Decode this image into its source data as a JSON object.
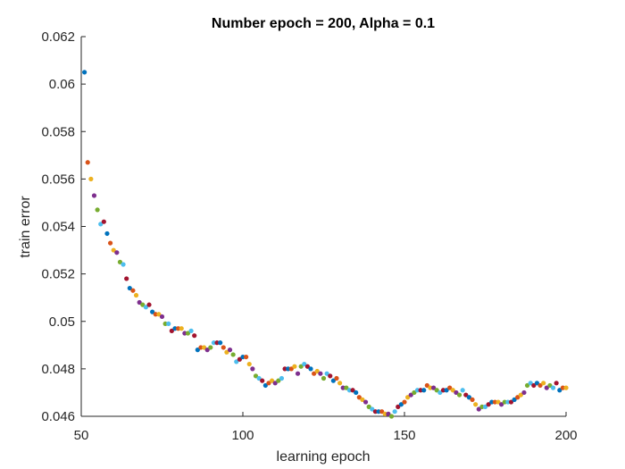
{
  "chart_data": {
    "type": "scatter",
    "title": "Number epoch = 200, Alpha = 0.1",
    "xlabel": "learning epoch",
    "ylabel": "train error",
    "xlim": [
      50,
      200
    ],
    "ylim": [
      0.046,
      0.062
    ],
    "grid": false,
    "x_ticks": [
      50,
      100,
      150,
      200
    ],
    "x_tick_labels": [
      "50",
      "100",
      "150",
      "200"
    ],
    "y_ticks": [
      0.046,
      0.048,
      0.05,
      0.052,
      0.054,
      0.056,
      0.058,
      0.06,
      0.062
    ],
    "y_tick_labels": [
      "0.046",
      "0.048",
      "0.05",
      "0.052",
      "0.054",
      "0.056",
      "0.058",
      "0.06",
      "0.062"
    ],
    "colors": [
      "#0072BD",
      "#D95319",
      "#EDB120",
      "#7E2F8E",
      "#77AC30",
      "#4DBEEE",
      "#A2142F"
    ],
    "x": [
      51,
      52,
      53,
      54,
      55,
      56,
      57,
      58,
      59,
      60,
      61,
      62,
      63,
      64,
      65,
      66,
      67,
      68,
      69,
      70,
      71,
      72,
      73,
      74,
      75,
      76,
      77,
      78,
      79,
      80,
      81,
      82,
      83,
      84,
      85,
      86,
      87,
      88,
      89,
      90,
      91,
      92,
      93,
      94,
      95,
      96,
      97,
      98,
      99,
      100,
      101,
      102,
      103,
      104,
      105,
      106,
      107,
      108,
      109,
      110,
      111,
      112,
      113,
      114,
      115,
      116,
      117,
      118,
      119,
      120,
      121,
      122,
      123,
      124,
      125,
      126,
      127,
      128,
      129,
      130,
      131,
      132,
      133,
      134,
      135,
      136,
      137,
      138,
      139,
      140,
      141,
      142,
      143,
      144,
      145,
      146,
      147,
      148,
      149,
      150,
      151,
      152,
      153,
      154,
      155,
      156,
      157,
      158,
      159,
      160,
      161,
      162,
      163,
      164,
      165,
      166,
      167,
      168,
      169,
      170,
      171,
      172,
      173,
      174,
      175,
      176,
      177,
      178,
      179,
      180,
      181,
      182,
      183,
      184,
      185,
      186,
      187,
      188,
      189,
      190,
      191,
      192,
      193,
      194,
      195,
      196,
      197,
      198,
      199,
      200
    ],
    "y": [
      0.0605,
      0.0567,
      0.056,
      0.0553,
      0.0547,
      0.0541,
      0.0542,
      0.0537,
      0.0533,
      0.053,
      0.0529,
      0.0525,
      0.0524,
      0.0518,
      0.0514,
      0.0513,
      0.0511,
      0.0508,
      0.0507,
      0.0506,
      0.0507,
      0.0504,
      0.0503,
      0.0503,
      0.0502,
      0.0499,
      0.0499,
      0.0496,
      0.0497,
      0.0497,
      0.0497,
      0.0495,
      0.0495,
      0.0496,
      0.0494,
      0.0488,
      0.0489,
      0.0489,
      0.0488,
      0.0489,
      0.0491,
      0.0491,
      0.0491,
      0.0489,
      0.0487,
      0.0488,
      0.0486,
      0.0483,
      0.0484,
      0.0485,
      0.0485,
      0.0482,
      0.048,
      0.0477,
      0.0476,
      0.0475,
      0.0473,
      0.0474,
      0.0475,
      0.0474,
      0.0475,
      0.0476,
      0.048,
      0.048,
      0.048,
      0.0481,
      0.0478,
      0.0481,
      0.0482,
      0.0481,
      0.048,
      0.0478,
      0.0479,
      0.0478,
      0.0476,
      0.0478,
      0.0477,
      0.0475,
      0.0476,
      0.0474,
      0.0472,
      0.0472,
      0.0471,
      0.0471,
      0.047,
      0.0468,
      0.0467,
      0.0466,
      0.0464,
      0.0463,
      0.0462,
      0.0462,
      0.0462,
      0.0461,
      0.0461,
      0.046,
      0.0462,
      0.0464,
      0.0465,
      0.0466,
      0.0468,
      0.0469,
      0.047,
      0.0471,
      0.0471,
      0.0471,
      0.0473,
      0.0472,
      0.0472,
      0.0471,
      0.047,
      0.0471,
      0.0471,
      0.0472,
      0.0471,
      0.047,
      0.0469,
      0.0471,
      0.0469,
      0.0468,
      0.0467,
      0.0465,
      0.0463,
      0.0464,
      0.0464,
      0.0465,
      0.0466,
      0.0466,
      0.0466,
      0.0465,
      0.0466,
      0.0466,
      0.0466,
      0.0467,
      0.0468,
      0.0469,
      0.047,
      0.0473,
      0.0474,
      0.0473,
      0.0474,
      0.0473,
      0.0474,
      0.0472,
      0.0473,
      0.0472,
      0.0474,
      0.0471,
      0.0472,
      0.0472
    ]
  }
}
